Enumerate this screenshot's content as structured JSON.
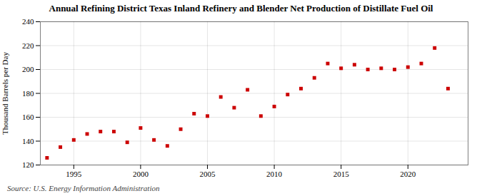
{
  "chart_data": {
    "type": "scatter",
    "title": "Annual Refining District Texas Inland Refinery and Blender Net Production of Distillate Fuel Oil",
    "ylabel": "Thousand Barrels per Day",
    "source": "Source: U.S. Energy Information Administration",
    "x": [
      1993,
      1994,
      1995,
      1996,
      1997,
      1998,
      1999,
      2000,
      2001,
      2002,
      2003,
      2004,
      2005,
      2006,
      2007,
      2008,
      2009,
      2010,
      2011,
      2012,
      2013,
      2014,
      2015,
      2016,
      2017,
      2018,
      2019,
      2020,
      2021,
      2022,
      2023
    ],
    "values": [
      126,
      135,
      141,
      146,
      148,
      148,
      139,
      151,
      141,
      136,
      150,
      163,
      161,
      177,
      168,
      183,
      161,
      169,
      179,
      184,
      193,
      205,
      201,
      204,
      200,
      201,
      200,
      202,
      205,
      218,
      184
    ],
    "color": "#cc0000",
    "marker": "square",
    "xlim": [
      1992.5,
      2024.5
    ],
    "xticks": [
      1995,
      2000,
      2005,
      2010,
      2015,
      2020
    ],
    "ylim": [
      120,
      240
    ],
    "yticks": [
      120,
      140,
      160,
      180,
      200,
      220,
      240
    ],
    "grid": true
  }
}
